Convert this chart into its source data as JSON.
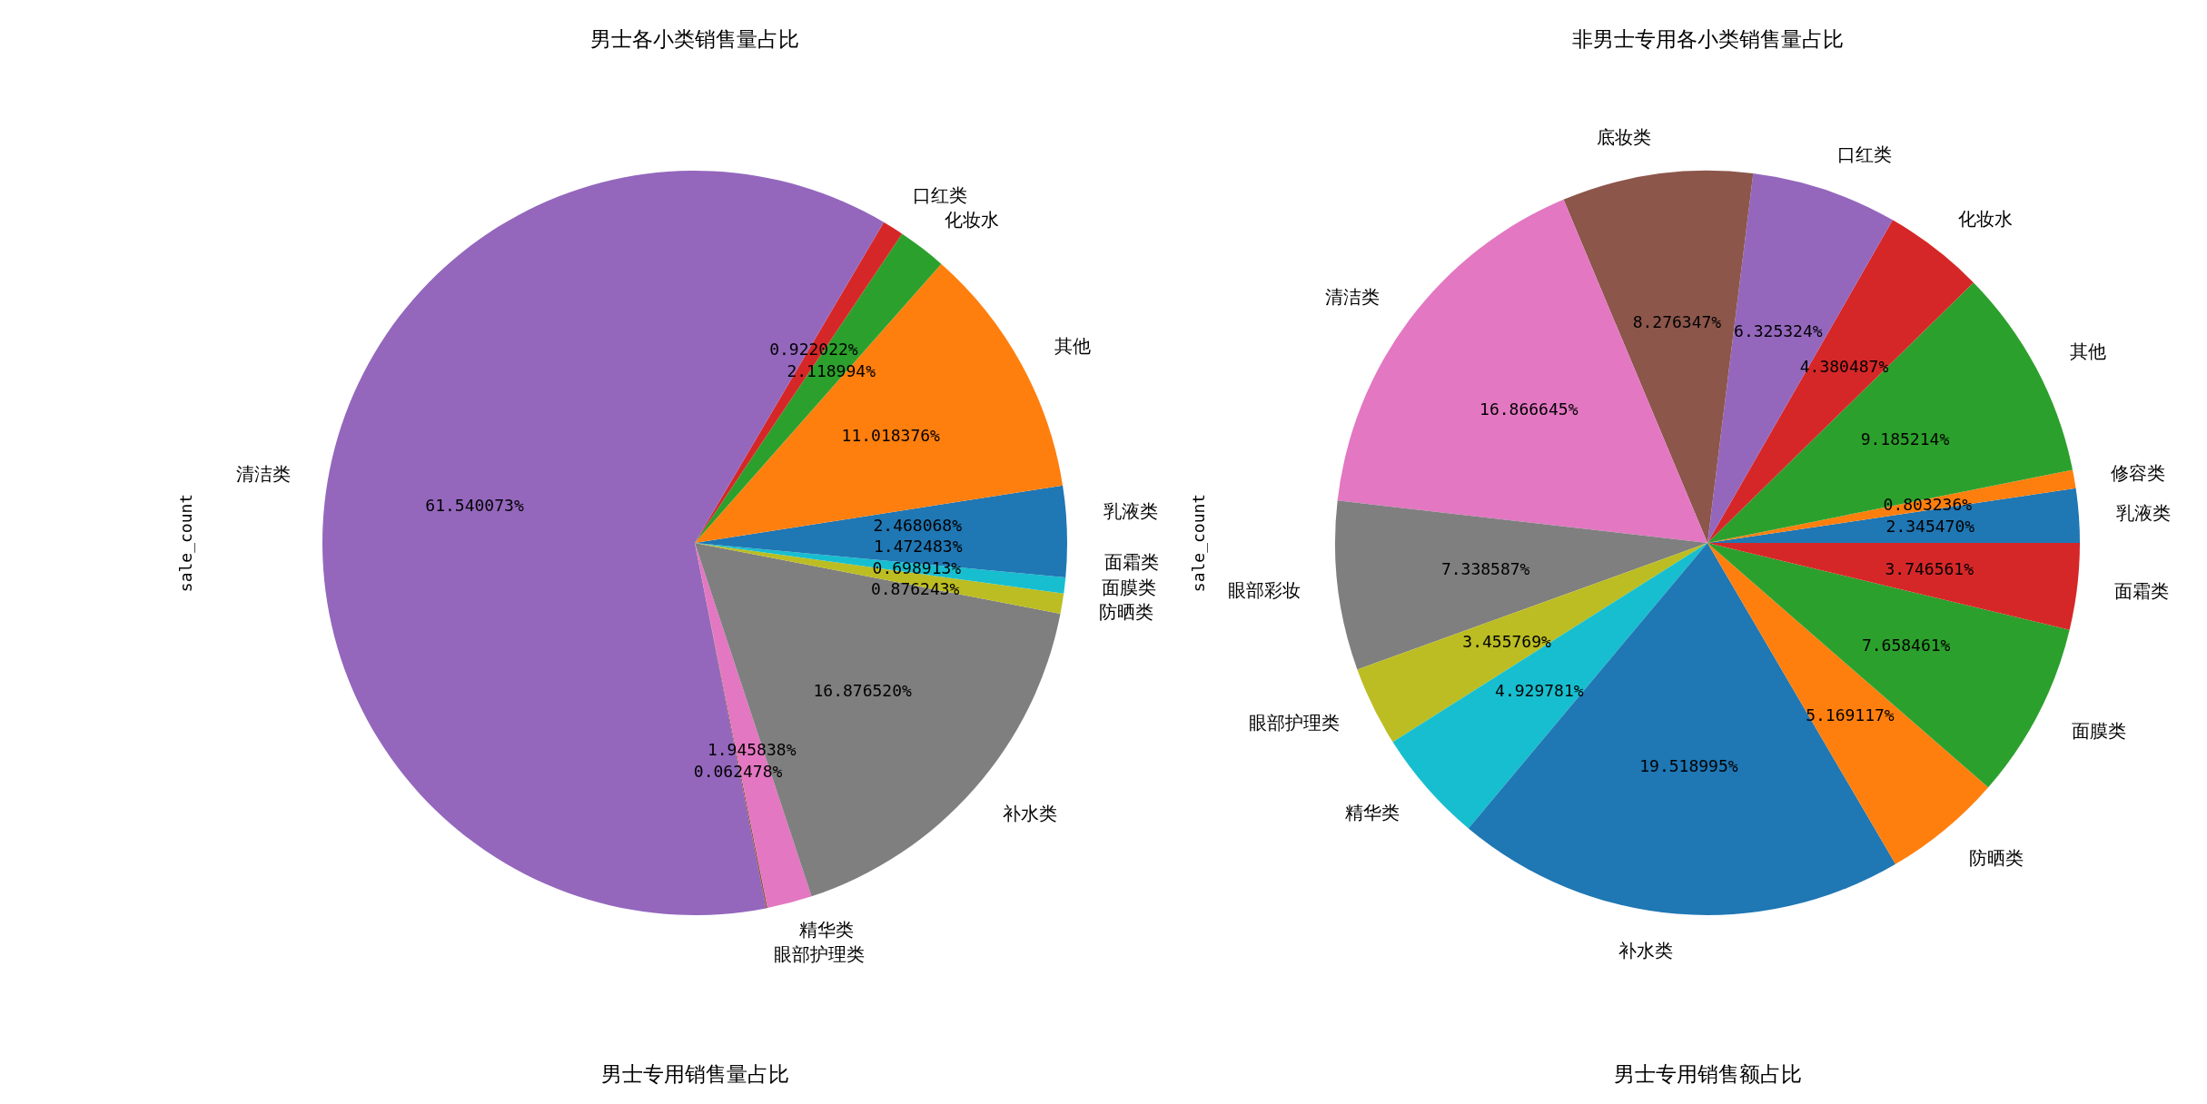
{
  "chart_data": [
    {
      "type": "pie",
      "title": "男士各小类销售量占比",
      "ylabel": "sale_count",
      "categories": [
        "乳液类",
        "其他",
        "化妆水",
        "口红类",
        "清洁类",
        "眼部护理类",
        "精华类",
        "补水类",
        "防晒类",
        "面膜类",
        "面霜类"
      ],
      "values": [
        2.468068,
        11.018376,
        2.118994,
        0.922022,
        61.540073,
        0.062478,
        1.945838,
        16.87652,
        0.876243,
        0.698913,
        1.472483
      ],
      "value_labels": [
        "2.468068%",
        "11.018376%",
        "2.118994%",
        "0.922022%",
        "61.540073%",
        "0.062478%",
        "1.945838%",
        "16.876520%",
        "0.876243%",
        "0.698913%",
        "1.472483%"
      ],
      "colors": [
        "#1f77b4",
        "#ff7f0e",
        "#2ca02c",
        "#d62728",
        "#9467bd",
        "#8c564b",
        "#e377c2",
        "#7f7f7f",
        "#bcbd22",
        "#17becf",
        "#1f77b4"
      ]
    },
    {
      "type": "pie",
      "title": "非男士专用各小类销售量占比",
      "ylabel": "sale_count",
      "categories": [
        "乳液类",
        "修容类",
        "其他",
        "化妆水",
        "口红类",
        "底妆类",
        "清洁类",
        "眼部彩妆",
        "眼部护理类",
        "精华类",
        "补水类",
        "防晒类",
        "面膜类",
        "面霜类"
      ],
      "values": [
        2.34547,
        0.803236,
        9.185214,
        4.380487,
        6.325324,
        8.276347,
        16.866645,
        7.338587,
        3.455769,
        4.929781,
        19.518995,
        5.169117,
        7.658461,
        3.746561
      ],
      "value_labels": [
        "2.345470%",
        "0.803236%",
        "9.185214%",
        "4.380487%",
        "6.325324%",
        "8.276347%",
        "16.866645%",
        "7.338587%",
        "3.455769%",
        "4.929781%",
        "19.518995%",
        "5.169117%",
        "7.658461%",
        "3.746561%"
      ],
      "colors": [
        "#1f77b4",
        "#ff7f0e",
        "#2ca02c",
        "#d62728",
        "#9467bd",
        "#8c564b",
        "#e377c2",
        "#7f7f7f",
        "#bcbd22",
        "#17becf",
        "#1f77b4",
        "#ff7f0e",
        "#2ca02c",
        "#d62728"
      ]
    },
    {
      "type": "other",
      "title": "男士专用销售量占比"
    },
    {
      "type": "other",
      "title": "男士专用销售额占比"
    }
  ]
}
